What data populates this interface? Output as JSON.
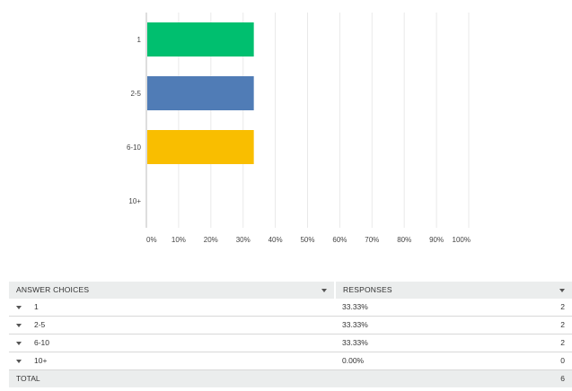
{
  "chart_data": {
    "type": "bar",
    "orientation": "horizontal",
    "categories": [
      "1",
      "2-5",
      "6-10",
      "10+"
    ],
    "values": [
      33.33,
      33.33,
      33.33,
      0.0
    ],
    "colors": [
      "#00bf6f",
      "#507cb6",
      "#f9be00",
      "#6bc8cd"
    ],
    "xlim": [
      0,
      100
    ],
    "xticks": [
      "0%",
      "10%",
      "20%",
      "30%",
      "40%",
      "50%",
      "60%",
      "70%",
      "80%",
      "90%",
      "100%"
    ],
    "grid": true
  },
  "table": {
    "headers": {
      "choices": "ANSWER CHOICES",
      "responses": "RESPONSES"
    },
    "rows": [
      {
        "label": "1",
        "percent": "33.33%",
        "count": "2"
      },
      {
        "label": "2-5",
        "percent": "33.33%",
        "count": "2"
      },
      {
        "label": "6-10",
        "percent": "33.33%",
        "count": "2"
      },
      {
        "label": "10+",
        "percent": "0.00%",
        "count": "0"
      }
    ],
    "total": {
      "label": "TOTAL",
      "count": "6"
    }
  }
}
